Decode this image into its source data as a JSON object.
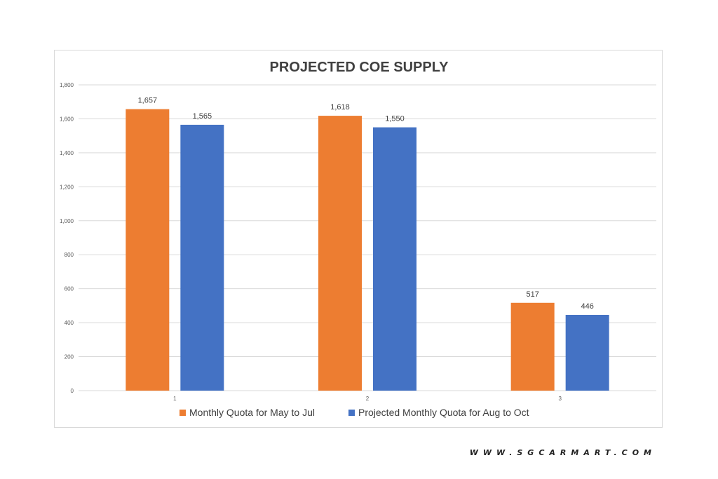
{
  "chart_data": {
    "type": "bar",
    "title": "PROJECTED COE SUPPLY",
    "categories": [
      "1",
      "2",
      "3"
    ],
    "series": [
      {
        "name": "Monthly Quota for May to Jul",
        "values": [
          1657,
          1618,
          517
        ],
        "labels": [
          "1,657",
          "1,618",
          "517"
        ],
        "color": "#ed7d31"
      },
      {
        "name": "Projected Monthly Quota for Aug to Oct",
        "values": [
          1565,
          1550,
          446
        ],
        "labels": [
          "1,565",
          "1,550",
          "446"
        ],
        "color": "#4472c4"
      }
    ],
    "ylim": [
      0,
      1800
    ],
    "yticks": [
      0,
      200,
      400,
      600,
      800,
      1000,
      1200,
      1400,
      1600,
      1800
    ],
    "ytick_labels": [
      "0",
      "200",
      "400",
      "600",
      "800",
      "1,000",
      "1,200",
      "1,400",
      "1,600",
      "1,800"
    ],
    "grid": true,
    "legend_position": "bottom"
  },
  "watermark": "WWW.SGCARMART.COM"
}
